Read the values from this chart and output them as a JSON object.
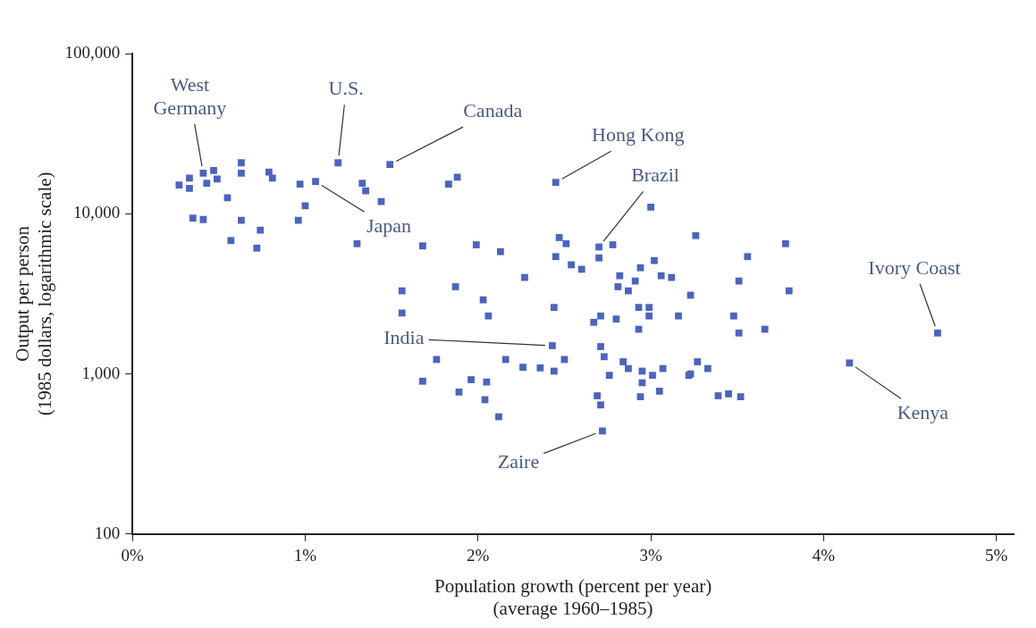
{
  "chart_data": {
    "type": "scatter",
    "xlabel": "Population growth (percent per year)\n(average 1960–1985)",
    "ylabel": "Output per person\n(1985 dollars, logarithmic scale)",
    "log": "y",
    "grid": false,
    "legend": false,
    "marker": "square",
    "xlim": [
      0,
      5.1
    ],
    "xticks": [
      {
        "value": 0,
        "label": "0%"
      },
      {
        "value": 1,
        "label": "1%"
      },
      {
        "value": 2,
        "label": "2%"
      },
      {
        "value": 3,
        "label": "3%"
      },
      {
        "value": 4,
        "label": "4%"
      },
      {
        "value": 5,
        "label": "5%"
      }
    ],
    "ylim": [
      100,
      100000
    ],
    "yticks": [
      100,
      {
        "value": 1000,
        "label": "1,000"
      },
      {
        "value": 10000,
        "label": "10,000"
      },
      {
        "value": 100000,
        "label": "100,000"
      }
    ],
    "series": [
      {
        "color": "#4a64c0",
        "x": [
          0.27,
          0.33,
          0.33,
          0.41,
          0.43,
          0.47,
          0.49,
          0.63,
          0.63,
          0.79,
          0.81,
          0.55,
          0.35,
          0.41,
          0.63,
          0.74,
          0.57,
          0.72,
          0.97,
          1.06,
          1.19,
          1.49,
          1.33,
          1.35,
          1.44,
          1.0,
          0.96,
          1.3,
          1.88,
          1.83,
          2.45,
          3.0,
          3.26,
          1.68,
          1.99,
          2.13,
          2.47,
          2.51,
          2.45,
          2.7,
          2.78,
          2.7,
          2.54,
          2.6,
          2.27,
          3.02,
          2.94,
          2.82,
          3.06,
          3.12,
          2.81,
          2.91,
          2.87,
          3.23,
          1.56,
          1.87,
          2.03,
          2.44,
          2.93,
          2.99,
          3.78,
          3.56,
          3.51,
          3.8,
          3.16,
          3.48,
          3.51,
          3.66,
          4.66,
          4.15,
          3.27,
          3.33,
          3.23,
          1.56,
          2.06,
          2.71,
          2.67,
          2.8,
          2.99,
          2.93,
          2.43,
          1.76,
          2.16,
          2.26,
          2.36,
          2.44,
          2.5,
          2.71,
          2.73,
          2.84,
          2.87,
          2.76,
          2.95,
          3.01,
          3.07,
          2.95,
          3.05,
          2.94,
          3.22,
          1.68,
          1.96,
          2.05,
          1.89,
          2.04,
          2.12,
          2.69,
          2.71,
          2.72,
          3.39,
          3.45,
          3.52
        ],
        "values": [
          15100,
          16700,
          14400,
          17900,
          15500,
          18600,
          16500,
          20800,
          17900,
          18200,
          16700,
          12600,
          9400,
          9200,
          9100,
          7900,
          6800,
          6100,
          15300,
          15900,
          20800,
          20300,
          15500,
          13900,
          11900,
          11200,
          9100,
          6500,
          16900,
          15300,
          15700,
          11000,
          7300,
          6300,
          6400,
          5800,
          7100,
          6500,
          5400,
          6200,
          6400,
          5300,
          4800,
          4500,
          4000,
          5100,
          4600,
          4100,
          4100,
          4000,
          3500,
          3800,
          3300,
          3100,
          3300,
          3500,
          2900,
          2600,
          2600,
          2600,
          6500,
          5400,
          3800,
          3300,
          2300,
          2300,
          1800,
          1900,
          1800,
          1170,
          1190,
          1080,
          1000,
          2400,
          2300,
          2300,
          2100,
          2200,
          2300,
          1900,
          1500,
          1230,
          1230,
          1100,
          1090,
          1040,
          1230,
          1480,
          1280,
          1190,
          1080,
          980,
          1040,
          980,
          1080,
          880,
          780,
          720,
          980,
          900,
          920,
          890,
          770,
          690,
          540,
          730,
          640,
          440,
          730,
          750,
          720
        ]
      }
    ],
    "annotations": [
      {
        "text": "West Germany",
        "x": 0.41,
        "y": 17900
      },
      {
        "text": "U.S.",
        "x": 1.19,
        "y": 20800
      },
      {
        "text": "Canada",
        "x": 1.49,
        "y": 20300
      },
      {
        "text": "Hong Kong",
        "x": 2.45,
        "y": 15700
      },
      {
        "text": "Brazil",
        "x": 2.7,
        "y": 6200
      },
      {
        "text": "Japan",
        "x": 1.06,
        "y": 15900
      },
      {
        "text": "India",
        "x": 2.43,
        "y": 1500
      },
      {
        "text": "Ivory Coast",
        "x": 4.66,
        "y": 1800
      },
      {
        "text": "Kenya",
        "x": 4.15,
        "y": 1170
      },
      {
        "text": "Zaire",
        "x": 2.72,
        "y": 440
      }
    ]
  }
}
